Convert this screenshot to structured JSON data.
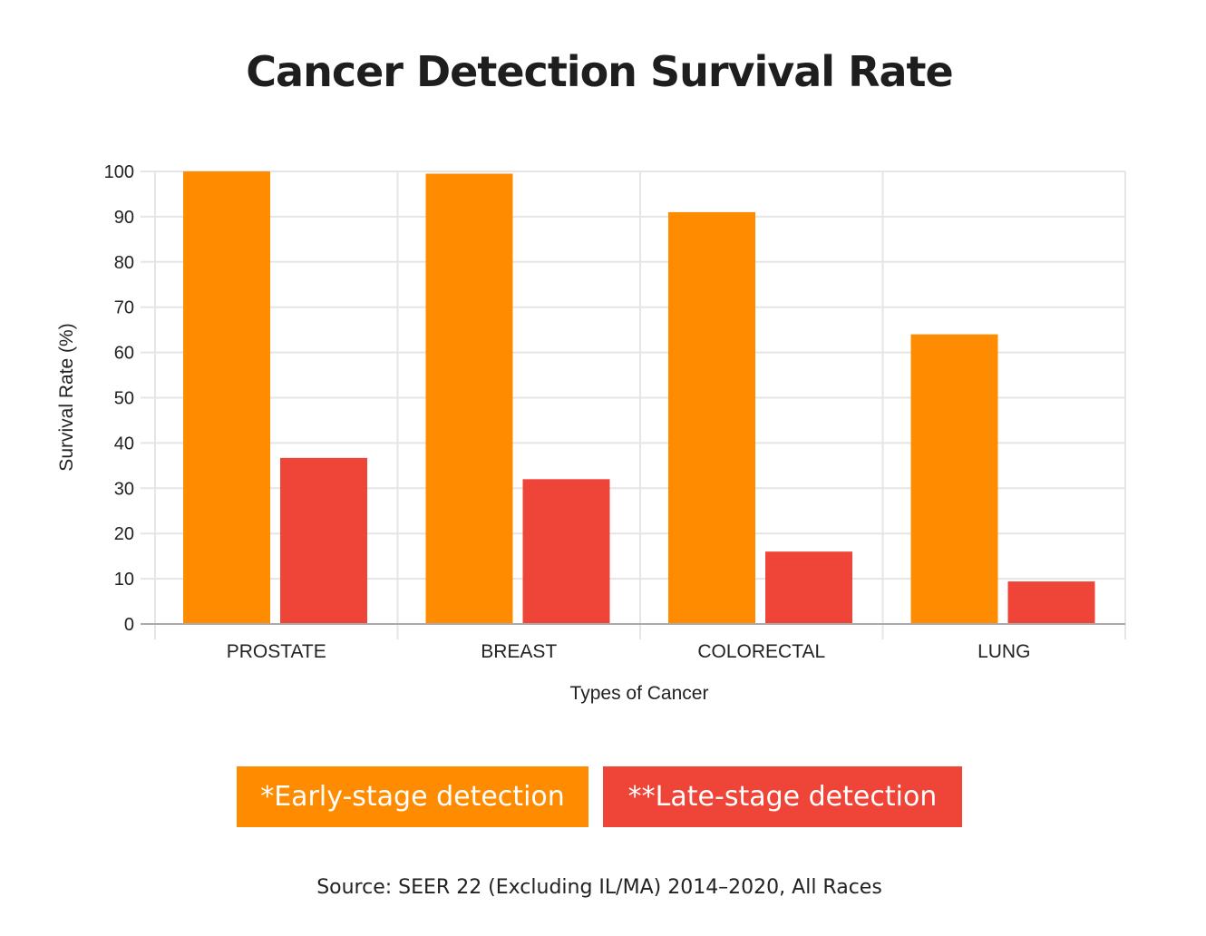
{
  "colors": {
    "early": "#ff8c00",
    "late": "#ef4438",
    "grid": "#e5e5e5",
    "axis": "#aaaaaa"
  },
  "legend": {
    "early": "*Early-stage detection",
    "late": "**Late-stage detection"
  },
  "source": "Source: SEER 22 (Excluding IL/MA) 2014–2020, All Races",
  "chart_data": {
    "type": "bar",
    "title": "Cancer Detection Survival Rate",
    "xlabel": "Types of Cancer",
    "ylabel": "Survival Rate (%)",
    "ylim": [
      0,
      100
    ],
    "yticks": [
      0,
      10,
      20,
      30,
      40,
      50,
      60,
      70,
      80,
      90,
      100
    ],
    "grid": true,
    "legend_position": "bottom",
    "categories": [
      "PROSTATE",
      "BREAST",
      "COLORECTAL",
      "LUNG"
    ],
    "series": [
      {
        "name": "*Early-stage detection",
        "values": [
          100,
          99.5,
          91,
          64
        ]
      },
      {
        "name": "**Late-stage detection",
        "values": [
          36.7,
          32,
          16,
          9.4
        ]
      }
    ],
    "source": "Source: SEER 22 (Excluding IL/MA) 2014–2020, All Races"
  }
}
